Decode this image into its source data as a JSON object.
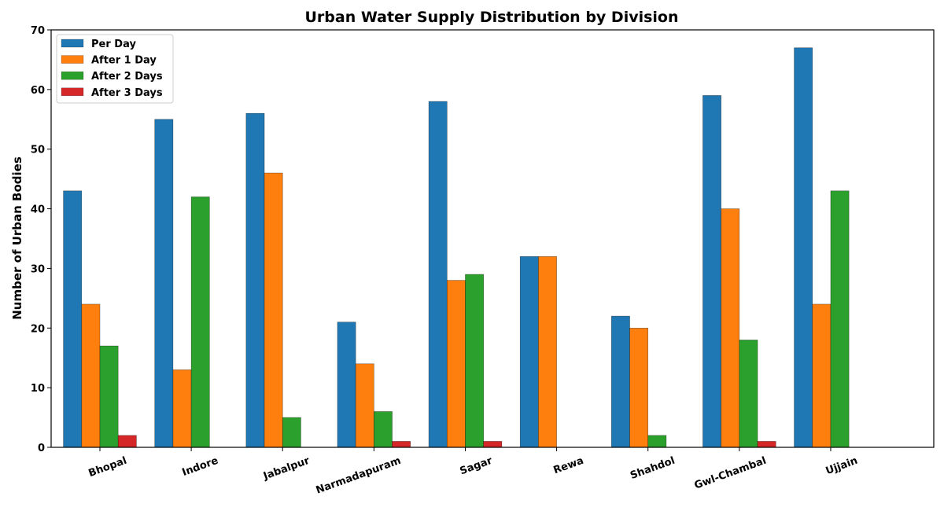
{
  "chart_data": {
    "type": "bar",
    "title": "Urban Water Supply Distribution by Division",
    "xlabel": "",
    "ylabel": "Number of Urban Bodies",
    "ylim": [
      0,
      70
    ],
    "yticks": [
      0,
      10,
      20,
      30,
      40,
      50,
      60,
      70
    ],
    "grid": false,
    "legend_position": "top-left",
    "categories": [
      "Bhopal",
      "Indore",
      "Jabalpur",
      "Narmadapuram",
      "Sagar",
      "Rewa",
      "Shahdol",
      "Gwl-Chambal",
      "Ujjain"
    ],
    "series": [
      {
        "name": "Per Day",
        "color": "#1f77b4",
        "values": [
          43,
          55,
          56,
          21,
          58,
          32,
          22,
          59,
          67
        ]
      },
      {
        "name": "After 1 Day",
        "color": "#ff7f0e",
        "values": [
          24,
          13,
          46,
          14,
          28,
          32,
          20,
          40,
          24
        ]
      },
      {
        "name": "After 2 Days",
        "color": "#2ca02c",
        "values": [
          17,
          42,
          5,
          6,
          29,
          0,
          2,
          18,
          43
        ]
      },
      {
        "name": "After 3 Days",
        "color": "#d62728",
        "values": [
          2,
          0,
          0,
          1,
          1,
          0,
          0,
          1,
          0
        ]
      }
    ]
  }
}
